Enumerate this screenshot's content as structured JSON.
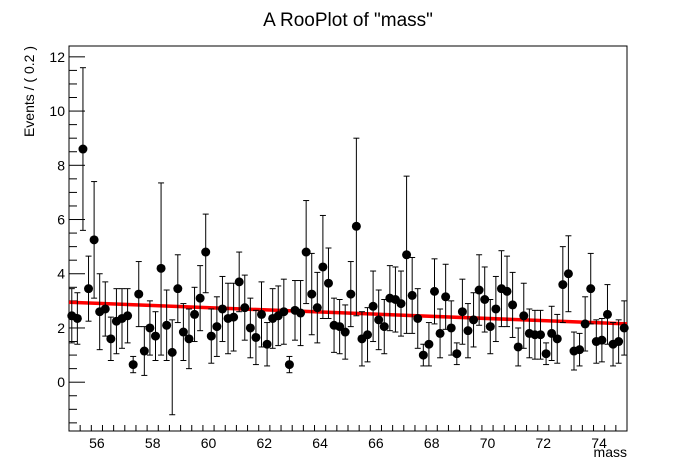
{
  "chart_data": {
    "type": "scatter",
    "title": "A RooPlot of \"mass\"",
    "xlabel": "mass",
    "ylabel": "Events / ( 0.2 )",
    "xlim": [
      55,
      75
    ],
    "ylim": [
      -1.8,
      12.4
    ],
    "x_ticks": [
      "56",
      "58",
      "60",
      "62",
      "64",
      "66",
      "68",
      "70",
      "72",
      "74"
    ],
    "y_ticks": [
      "0",
      "2",
      "4",
      "6",
      "8",
      "10",
      "12"
    ],
    "bin_width": 0.2,
    "series": [
      {
        "style": "points-with-errorbars",
        "color": "#000000",
        "x": [
          55.1,
          55.3,
          55.5,
          55.7,
          55.9,
          56.1,
          56.3,
          56.5,
          56.7,
          56.9,
          57.1,
          57.3,
          57.5,
          57.7,
          57.9,
          58.1,
          58.3,
          58.5,
          58.7,
          58.9,
          59.1,
          59.3,
          59.5,
          59.7,
          59.9,
          60.1,
          60.3,
          60.5,
          60.7,
          60.9,
          61.1,
          61.3,
          61.5,
          61.7,
          61.9,
          62.1,
          62.3,
          62.5,
          62.7,
          62.9,
          63.1,
          63.3,
          63.5,
          63.7,
          63.9,
          64.1,
          64.3,
          64.5,
          64.7,
          64.9,
          65.1,
          65.3,
          65.5,
          65.7,
          65.9,
          66.1,
          66.3,
          66.5,
          66.7,
          66.9,
          67.1,
          67.3,
          67.5,
          67.7,
          67.9,
          68.1,
          68.3,
          68.5,
          68.7,
          68.9,
          69.1,
          69.3,
          69.5,
          69.7,
          69.9,
          70.1,
          70.3,
          70.5,
          70.7,
          70.9,
          71.1,
          71.3,
          71.5,
          71.7,
          71.9,
          72.1,
          72.3,
          72.5,
          72.7,
          72.9,
          73.1,
          73.3,
          73.5,
          73.7,
          73.9,
          74.1,
          74.3,
          74.5,
          74.7,
          74.9
        ],
        "y": [
          2.45,
          2.35,
          8.6,
          3.45,
          5.25,
          2.6,
          2.7,
          1.6,
          2.25,
          2.35,
          2.45,
          0.65,
          3.25,
          1.15,
          2.0,
          1.7,
          4.2,
          2.1,
          1.1,
          3.45,
          1.85,
          1.6,
          2.5,
          3.1,
          4.8,
          1.7,
          2.05,
          2.7,
          2.35,
          2.4,
          3.7,
          2.75,
          2.0,
          1.65,
          2.5,
          1.4,
          2.35,
          2.45,
          2.6,
          0.65,
          2.65,
          2.55,
          4.8,
          3.25,
          2.75,
          4.25,
          3.65,
          2.1,
          2.05,
          1.85,
          3.25,
          5.75,
          1.6,
          1.75,
          2.8,
          2.3,
          2.05,
          3.1,
          3.05,
          2.9,
          4.7,
          3.2,
          2.35,
          1.0,
          1.4,
          3.35,
          1.8,
          3.15,
          2.0,
          1.05,
          2.6,
          1.9,
          2.3,
          3.4,
          3.05,
          2.05,
          2.7,
          3.45,
          3.35,
          2.85,
          1.3,
          2.45,
          1.8,
          1.75,
          1.75,
          1.05,
          1.8,
          1.6,
          3.6,
          4.0,
          1.15,
          1.2,
          2.15,
          3.45,
          1.5,
          1.55,
          2.5,
          1.4,
          1.5,
          2.0
        ],
        "err_low": [
          1.0,
          0.95,
          3.0,
          1.2,
          2.15,
          1.4,
          1.0,
          0.8,
          1.2,
          1.1,
          1.0,
          0.3,
          1.2,
          0.9,
          1.0,
          0.9,
          3.2,
          1.3,
          2.3,
          1.25,
          1.05,
          1.1,
          1.0,
          1.2,
          1.5,
          1.0,
          1.1,
          1.2,
          1.3,
          1.25,
          1.1,
          1.2,
          1.1,
          1.0,
          1.2,
          0.8,
          1.1,
          1.1,
          1.2,
          0.3,
          1.1,
          1.2,
          1.9,
          1.5,
          1.3,
          1.9,
          1.3,
          1.0,
          1.0,
          1.0,
          1.2,
          3.3,
          1.0,
          1.0,
          1.3,
          1.1,
          1.0,
          1.2,
          1.2,
          1.2,
          2.9,
          1.4,
          1.1,
          0.4,
          0.8,
          1.2,
          0.9,
          1.2,
          1.0,
          0.4,
          1.2,
          1.0,
          1.0,
          1.3,
          1.2,
          1.0,
          1.2,
          1.4,
          1.3,
          1.2,
          0.7,
          1.2,
          0.9,
          0.9,
          0.9,
          0.4,
          1.0,
          0.9,
          1.4,
          1.4,
          0.7,
          0.6,
          1.0,
          1.3,
          0.8,
          0.8,
          1.1,
          0.8,
          0.8,
          1.0
        ],
        "err_high": [
          1.0,
          0.95,
          3.0,
          1.2,
          2.15,
          1.4,
          1.0,
          0.8,
          1.2,
          1.1,
          1.0,
          0.3,
          1.2,
          0.9,
          1.0,
          0.9,
          3.15,
          1.3,
          1.2,
          1.25,
          1.05,
          1.1,
          1.0,
          1.2,
          1.4,
          1.0,
          1.1,
          1.2,
          1.3,
          1.25,
          1.1,
          1.2,
          1.1,
          1.0,
          1.2,
          0.8,
          1.1,
          1.1,
          1.2,
          0.3,
          1.1,
          1.2,
          1.9,
          1.5,
          1.3,
          1.9,
          1.3,
          1.0,
          1.0,
          1.0,
          1.2,
          3.25,
          1.0,
          1.0,
          1.3,
          1.1,
          1.0,
          1.2,
          1.2,
          1.2,
          2.9,
          1.4,
          1.1,
          0.4,
          0.8,
          1.2,
          0.9,
          1.2,
          1.0,
          0.4,
          1.2,
          1.0,
          1.0,
          1.3,
          1.2,
          1.0,
          1.2,
          1.4,
          1.3,
          1.2,
          0.7,
          1.2,
          0.9,
          0.9,
          0.9,
          0.4,
          1.0,
          0.9,
          1.4,
          1.4,
          0.7,
          0.6,
          1.0,
          1.3,
          0.8,
          0.8,
          1.1,
          0.8,
          0.8,
          1.0
        ]
      },
      {
        "style": "curve",
        "color": "#ff0000",
        "x": [
          55,
          75
        ],
        "y": [
          2.95,
          2.15
        ]
      }
    ],
    "grid": false,
    "legend": "none"
  }
}
